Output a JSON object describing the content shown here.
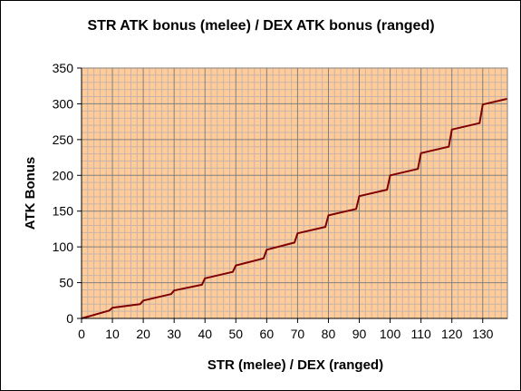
{
  "chart_data": {
    "type": "line",
    "title": "STR ATK bonus (melee) / DEX ATK bonus (ranged)",
    "xlabel": "STR (melee) / DEX (ranged)",
    "ylabel": "ATK Bonus",
    "xlim": [
      0,
      138
    ],
    "ylim": [
      0,
      350
    ],
    "xticks": [
      0,
      10,
      20,
      30,
      40,
      50,
      60,
      70,
      80,
      90,
      100,
      110,
      120,
      130
    ],
    "yticks": [
      0,
      50,
      100,
      150,
      200,
      250,
      300,
      350
    ],
    "grid": true,
    "legend": "none",
    "colors": {
      "plot_background": "#ffcc99",
      "major_grid": "#808080",
      "minor_grid": "#c8b4aa",
      "line": "#800000"
    },
    "series": [
      {
        "x": [
          0,
          9,
          10,
          19,
          20,
          29,
          30,
          39,
          40,
          49,
          50,
          59,
          60,
          69,
          70,
          79,
          80,
          89,
          90,
          99,
          100,
          109,
          110,
          119,
          120,
          129,
          130,
          138
        ],
        "values": [
          0,
          11,
          15,
          20,
          25,
          34,
          39,
          47,
          56,
          65,
          74,
          84,
          96,
          106,
          119,
          128,
          144,
          153,
          171,
          180,
          200,
          209,
          231,
          240,
          264,
          273,
          299,
          307
        ]
      }
    ]
  }
}
